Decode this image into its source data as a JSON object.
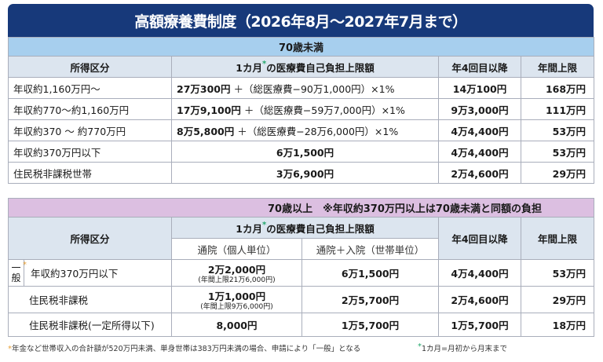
{
  "title": "高額療養費制度（2026年8月〜2027年7月まで）",
  "under70": {
    "section_label": "70歳未満",
    "headers": {
      "category": "所得区分",
      "limit_pre": "1カ月",
      "limit_star": "*",
      "limit_post": "の医療費自己負担上限額",
      "fourth": "年4回目以降",
      "annual": "年間上限"
    },
    "rows": [
      {
        "category": "年収約1,160万円〜",
        "base": "27万300円",
        "formula": "＋（総医療費−90万1,000円）×1%",
        "fourth": "14万100円",
        "annual": "168万円"
      },
      {
        "category": "年収約770〜約1,160万円",
        "base": "17万9,100円",
        "formula": "＋（総医療費−59万7,000円）×1%",
        "fourth": "9万3,000円",
        "annual": "111万円"
      },
      {
        "category": "年収約370 〜 約770万円",
        "base": "8万5,800円",
        "formula": "＋（総医療費−28万6,000円）×1%",
        "fourth": "4万4,400円",
        "annual": "53万円"
      },
      {
        "category": "年収約370万円以下",
        "amount": "6万1,500円",
        "fourth": "4万4,400円",
        "annual": "53万円"
      },
      {
        "category": "住民税非課税世帯",
        "amount": "3万6,900円",
        "fourth": "2万4,600円",
        "annual": "29万円"
      }
    ]
  },
  "over70": {
    "section_label": "70歳以上　※年収約370万円以上は70歳未満と同額の負担",
    "headers": {
      "category": "所得区分",
      "limit_pre": "1カ月",
      "limit_star": "*",
      "limit_post": "の医療費自己負担上限額",
      "outpatient": "通院（個人単位）",
      "combined": "通院＋入院（世帯単位）",
      "fourth": "年4回目以降",
      "annual": "年間上限"
    },
    "ippan_line1": "一",
    "ippan_line2": "般",
    "ippan_star": "*",
    "rows": [
      {
        "category": "年収約370万円以下",
        "outpatient": "2万2,000円",
        "outpatient_note": "(年間上限21万6,000円)",
        "combined": "6万1,500円",
        "fourth": "4万4,400円",
        "annual": "53万円"
      },
      {
        "category": "住民税非課税",
        "outpatient": "1万1,000円",
        "outpatient_note": "(年間上限9万6,000円)",
        "combined": "2万5,700円",
        "fourth": "2万4,600円",
        "annual": "29万円"
      },
      {
        "category": "住民税非課税(一定所得以下)",
        "outpatient": "8,000円",
        "combined": "1万5,700円",
        "fourth": "1万5,700円",
        "annual": "18万円"
      }
    ]
  },
  "footnotes": {
    "orange_star": "*",
    "orange_text": "年金など世帯収入の合計額が520万円未満、単身世帯は383万円未満の場合、申請により「一般」となる",
    "green_star": "*",
    "green_text": "1カ月=月初から月末まで"
  },
  "colors": {
    "title_bg": "#17397a",
    "under70_band": "#a7cfee",
    "over70_band": "#dcbfe1",
    "header_bg": "#dce5ef",
    "green_star": "#22a76b",
    "orange_star": "#e8a23a"
  }
}
